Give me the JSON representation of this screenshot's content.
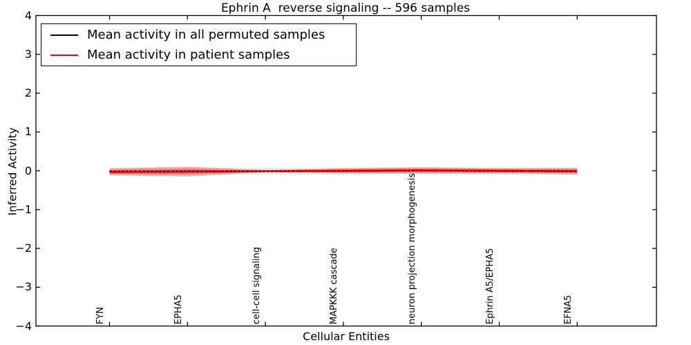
{
  "title": "Ephrin A  reverse signaling -- 596 samples",
  "legend": {
    "items": [
      {
        "label": "Mean activity in all permuted samples",
        "color": "#000000"
      },
      {
        "label": "Mean activity in patient samples",
        "color": "#ff0000"
      }
    ]
  },
  "axes": {
    "x_label": "Cellular Entities",
    "y_label": "Inferred Activity",
    "y_tick_labels": [
      "4",
      "3",
      "2",
      "1",
      "0",
      "−1",
      "−2",
      "−3",
      "−4"
    ],
    "y_tick_values": [
      4,
      3,
      2,
      1,
      0,
      -1,
      -2,
      -3,
      -4
    ],
    "y_lim": [
      -4,
      4
    ]
  },
  "chart_data": {
    "type": "line",
    "title": "Ephrin A  reverse signaling -- 596 samples",
    "xlabel": "Cellular Entities",
    "ylabel": "Inferred Activity",
    "ylim": [
      -4,
      4
    ],
    "grid": false,
    "legend_position": "upper left",
    "categories": [
      "FYN",
      "EPHA5",
      "cell-cell signaling",
      "MAPKKK cascade",
      "neuron projection morphogenesis",
      "Ephrin A5/EPHA5",
      "EFNA5"
    ],
    "series": [
      {
        "name": "Mean activity in all permuted samples",
        "color": "#000000",
        "line_style": "dashed",
        "values": [
          -0.01,
          -0.01,
          -0.01,
          -0.01,
          0.0,
          -0.01,
          -0.01
        ],
        "band_halfwidth": [
          0.085,
          0.085,
          0.08,
          0.08,
          0.085,
          0.08,
          0.085
        ],
        "band_fill": "rgba(0,0,0,0.10)"
      },
      {
        "name": "Mean activity in patient samples",
        "color": "#ff0000",
        "line_style": "solid",
        "values": [
          -0.03,
          -0.02,
          -0.01,
          0.0,
          0.01,
          0.0,
          -0.01
        ],
        "band_halfwidth": [
          0.09,
          0.13,
          0.025,
          0.07,
          0.08,
          0.07,
          0.085
        ],
        "band_fill": "rgba(255,0,0,0.28)",
        "inner_band_scale": 0.55,
        "inner_band_fill": "rgba(255,0,0,0.35)"
      }
    ]
  }
}
